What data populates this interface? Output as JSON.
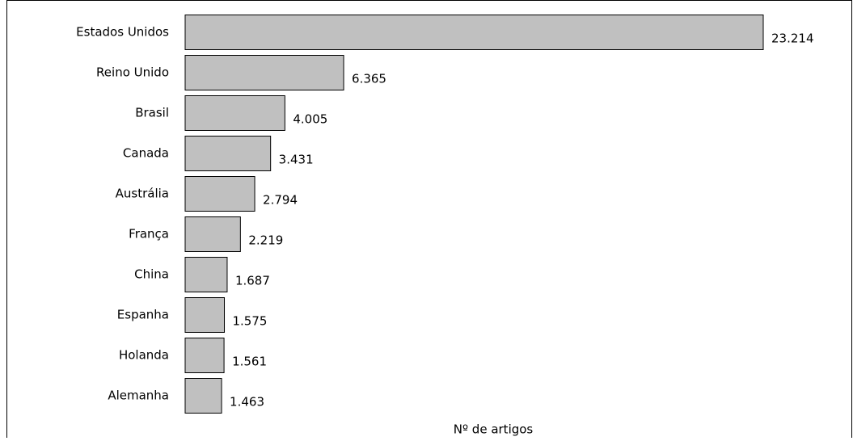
{
  "chart_data": {
    "type": "barh",
    "x_label": "Nº de artigos",
    "categories": [
      "Estados Unidos",
      "Reino Unido",
      "Brasil",
      "Canada",
      "Austrália",
      "França",
      "China",
      "Espanha",
      "Holanda",
      "Alemanha"
    ],
    "values": [
      23214,
      6365,
      4005,
      3431,
      2794,
      2219,
      1687,
      1575,
      1561,
      1463
    ],
    "value_labels": [
      "23.214",
      "6.365",
      "4.005",
      "3.431",
      "2.794",
      "2.219",
      "1.687",
      "1.575",
      "1.561",
      "1.463"
    ],
    "color": "#c0c0c0"
  }
}
